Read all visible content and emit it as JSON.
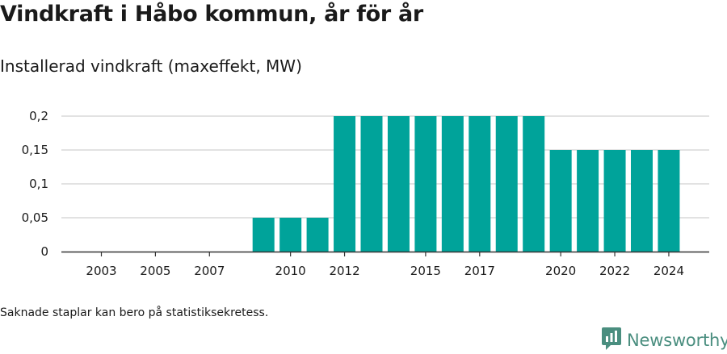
{
  "title": "Vindkraft i Håbo kommun, år för år",
  "subtitle": "Installerad vindkraft (maxeffekt, MW)",
  "footnote": "Saknade staplar kan bero på statistiksekretess.",
  "brand": {
    "name": "Newsworthy",
    "icon": "newsworthy-logo-icon",
    "color": "#4a8e7f"
  },
  "colors": {
    "bar": "#00a39a",
    "grid": "#d9d9d9",
    "axis": "#333333"
  },
  "chart_data": {
    "type": "bar",
    "title": "Vindkraft i Håbo kommun, år för år",
    "subtitle": "Installerad vindkraft (maxeffekt, MW)",
    "xlabel": "",
    "ylabel": "",
    "categories": [
      2002,
      2003,
      2004,
      2005,
      2006,
      2007,
      2008,
      2009,
      2010,
      2011,
      2012,
      2013,
      2014,
      2015,
      2016,
      2017,
      2018,
      2019,
      2020,
      2021,
      2022,
      2023,
      2024
    ],
    "values": [
      0,
      0,
      0,
      0,
      0,
      0,
      0,
      0.05,
      0.05,
      0.05,
      0.2,
      0.2,
      0.2,
      0.2,
      0.2,
      0.2,
      0.2,
      0.2,
      0.15,
      0.15,
      0.15,
      0.15,
      0.15
    ],
    "x_tick_labels": [
      "2003",
      "2005",
      "2007",
      "2010",
      "2012",
      "2015",
      "2017",
      "2020",
      "2022",
      "2024"
    ],
    "y_ticks": [
      0,
      0.05,
      0.1,
      0.15,
      0.2
    ],
    "y_tick_labels": [
      "0",
      "0,05",
      "0,1",
      "0,15",
      "0,2"
    ],
    "ylim": [
      0,
      0.2
    ],
    "grid": true,
    "legend": false
  }
}
